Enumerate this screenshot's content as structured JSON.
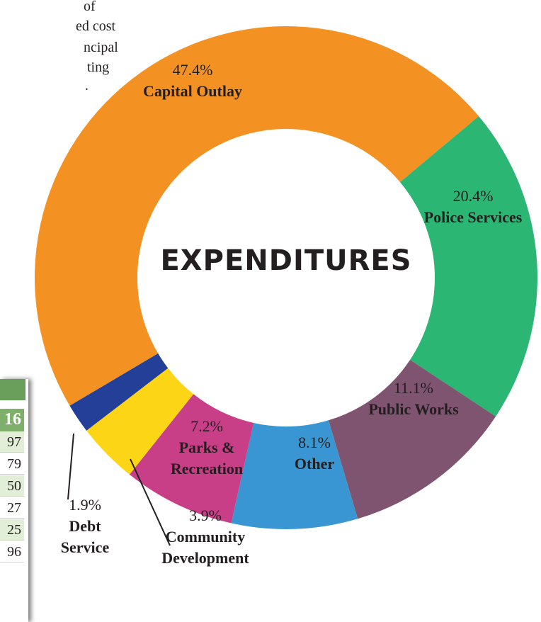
{
  "chart_data": {
    "type": "donut",
    "title": "EXPENDITURES",
    "categories": [
      "Capital Outlay",
      "Police Services",
      "Public Works",
      "Other",
      "Parks & Recreation",
      "Community Development",
      "Debt Service"
    ],
    "values": [
      47.4,
      20.4,
      11.1,
      8.1,
      7.2,
      3.9,
      1.9
    ],
    "value_labels": [
      "47.4%",
      "20.4%",
      "11.1%",
      "8.1%",
      "7.2%",
      "3.9%",
      "1.9%"
    ],
    "colors": [
      "#f39223",
      "#2bb673",
      "#7f5470",
      "#3a96d2",
      "#c93f87",
      "#fcd616",
      "#233f97"
    ]
  },
  "text_fragments": [
    "of",
    "ed cost",
    "ncipal",
    "ting",
    "."
  ],
  "table": {
    "header": "16",
    "rows": [
      "97",
      "79",
      "50",
      "27",
      "25",
      "96"
    ]
  }
}
